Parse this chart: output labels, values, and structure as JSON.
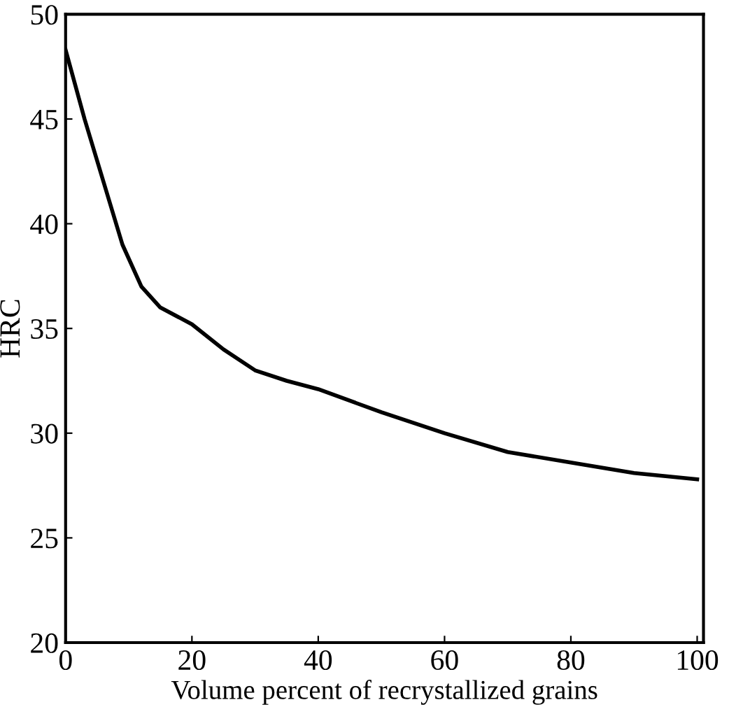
{
  "chart_data": {
    "type": "line",
    "xlabel": "Volume percent of recrystallized grains",
    "ylabel": "HRC",
    "x": [
      0,
      3,
      6,
      9,
      12,
      15,
      20,
      25,
      30,
      35,
      40,
      50,
      60,
      70,
      80,
      90,
      100
    ],
    "series": [
      {
        "color": "#000000",
        "values": [
          48.3,
          45,
          42,
          39,
          37,
          36,
          35.2,
          34,
          33,
          32.5,
          32.1,
          31,
          30,
          29.1,
          28.6,
          28.1,
          27.8
        ]
      }
    ],
    "xlim": [
      0,
      101
    ],
    "ylim": [
      20,
      50
    ],
    "xticks": [
      0,
      20,
      40,
      60,
      80,
      100
    ],
    "yticks": [
      20,
      25,
      30,
      35,
      40,
      45,
      50
    ],
    "grid": false,
    "marker": "none",
    "line_style": "solid"
  }
}
